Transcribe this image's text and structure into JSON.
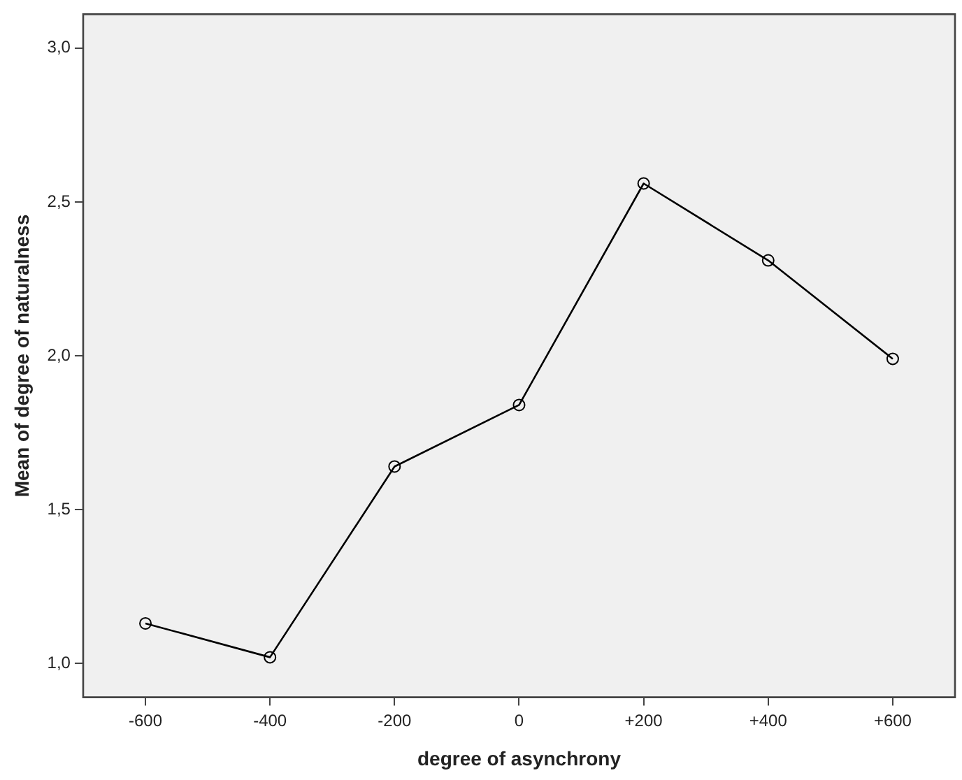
{
  "chart_data": {
    "type": "line",
    "xlabel": "degree of asynchrony",
    "ylabel": "Mean of degree of naturalness",
    "categories": [
      "-600",
      "-400",
      "-200",
      "0",
      "+200",
      "+400",
      "+600"
    ],
    "series": [
      {
        "color": "#000000",
        "values": [
          1.13,
          1.02,
          1.64,
          1.84,
          2.56,
          2.31,
          1.99
        ]
      }
    ],
    "ylim": [
      0.89,
      3.11
    ],
    "yticks": [
      {
        "value": 1,
        "label": "1,0"
      },
      {
        "value": 1.5,
        "label": "1,5"
      },
      {
        "value": 2,
        "label": "2,0"
      },
      {
        "value": 2.5,
        "label": "2,5"
      },
      {
        "value": 3,
        "label": "3,0"
      }
    ],
    "grid": false,
    "legend": false,
    "marker": "circle",
    "line_style": "solid"
  }
}
